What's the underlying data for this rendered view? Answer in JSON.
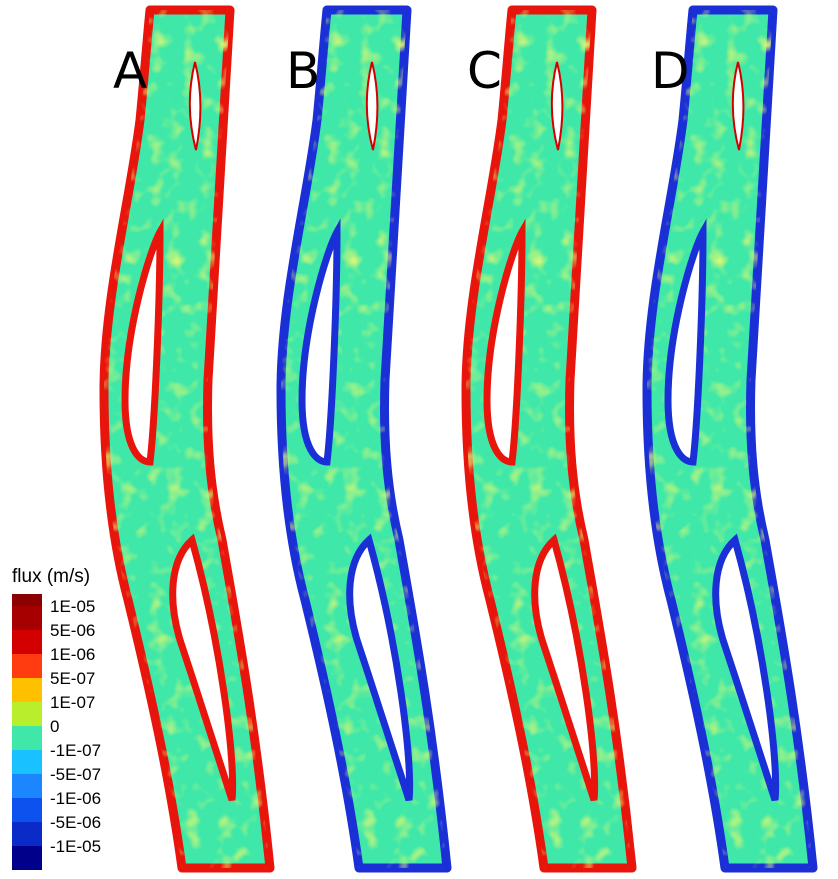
{
  "panels": [
    {
      "label": "A",
      "edge_color": "#e8150c"
    },
    {
      "label": "B",
      "edge_color": "#1a2fd6"
    },
    {
      "label": "C",
      "edge_color": "#e8150c"
    },
    {
      "label": "D",
      "edge_color": "#1a2fd6"
    }
  ],
  "legend": {
    "title": "flux (m/s)",
    "entries": [
      {
        "label": "1E-05",
        "color": "#a60000"
      },
      {
        "label": "5E-06",
        "color": "#d40000"
      },
      {
        "label": "1E-06",
        "color": "#ff3b10"
      },
      {
        "label": "5E-07",
        "color": "#ffc000"
      },
      {
        "label": "1E-07",
        "color": "#b8ee2c"
      },
      {
        "label": "0",
        "color": "#3fe8a8"
      },
      {
        "label": "-1E-07",
        "color": "#19c2ff"
      },
      {
        "label": "-5E-07",
        "color": "#1c86ff"
      },
      {
        "label": "-1E-06",
        "color": "#0d52ee"
      },
      {
        "label": "-5E-06",
        "color": "#0a2bc8"
      },
      {
        "label": "-1E-05",
        "color": "#00008a"
      }
    ],
    "colors_top": [
      "#8b0000",
      "#c00000"
    ]
  },
  "fill_color": "#3fe8a8",
  "speckle_color": "#b8ee2c"
}
